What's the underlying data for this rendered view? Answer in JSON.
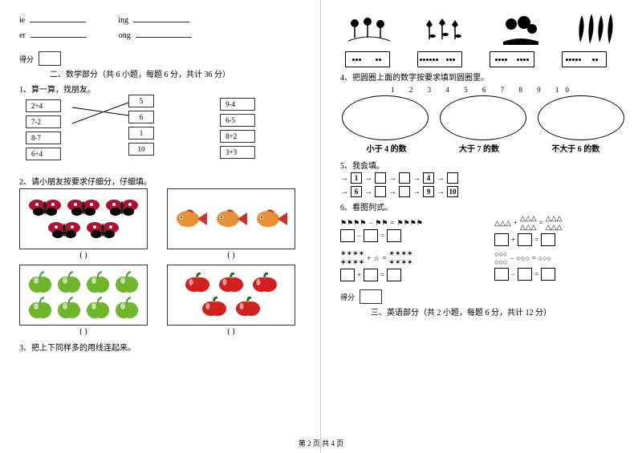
{
  "left": {
    "pinyin": {
      "items": [
        "ie",
        "ing",
        "er",
        "ong"
      ]
    },
    "score_label": "得分",
    "section2": "二、数学部分（共 6 小题，每题 6 分，共计 36 分）",
    "q1": {
      "title": "1、算一算，找朋友。",
      "leftcol": [
        "2+4",
        "7-2",
        "8-7",
        "6+4"
      ],
      "midcol": [
        "5",
        "6",
        "1",
        "10"
      ],
      "rightcol": [
        "9-4",
        "6-5",
        "8+2",
        "3+3"
      ]
    },
    "q2": {
      "title": "2、请小朋友按要求仔细分，仔细填。",
      "box1_count": 5,
      "box2_count": 3,
      "box3_count": 8,
      "box4_count": 5,
      "caption": "(            )"
    },
    "q3": {
      "title": "3、把上下同样多的用线连起来。"
    }
  },
  "right": {
    "q4": {
      "title": "4、把圆圈上面的数字按要求填到圆圈里。",
      "dominos": [
        [
          3,
          2
        ],
        [
          6,
          3
        ],
        [
          4,
          4
        ],
        [
          5,
          2
        ]
      ],
      "numbers": "1   2   3   4     5    6   7   8     9   10",
      "labels": [
        "小于 4 的数",
        "大于 7 的数",
        "不大于 6 的数"
      ]
    },
    "q5": {
      "title": "5、我会填。",
      "row1_vals": [
        "1",
        "",
        "",
        "4",
        ""
      ],
      "row2_vals": [
        "6",
        "",
        "",
        "9",
        "10"
      ]
    },
    "q6": {
      "title": "6、看图列式。"
    },
    "section3": "三、英语部分（共 2 小题，每题 6 分，共计 12 分）",
    "score_label": "得分"
  },
  "footer": "第 2 页 共 4 页",
  "colors": {
    "butterfly": "#b01030",
    "butterfly_dark": "#000000",
    "fish_body": "#e89038",
    "fish_red": "#d03028",
    "apple": "#6fb42a",
    "pepper": "#d22020",
    "flower": "#000000"
  }
}
